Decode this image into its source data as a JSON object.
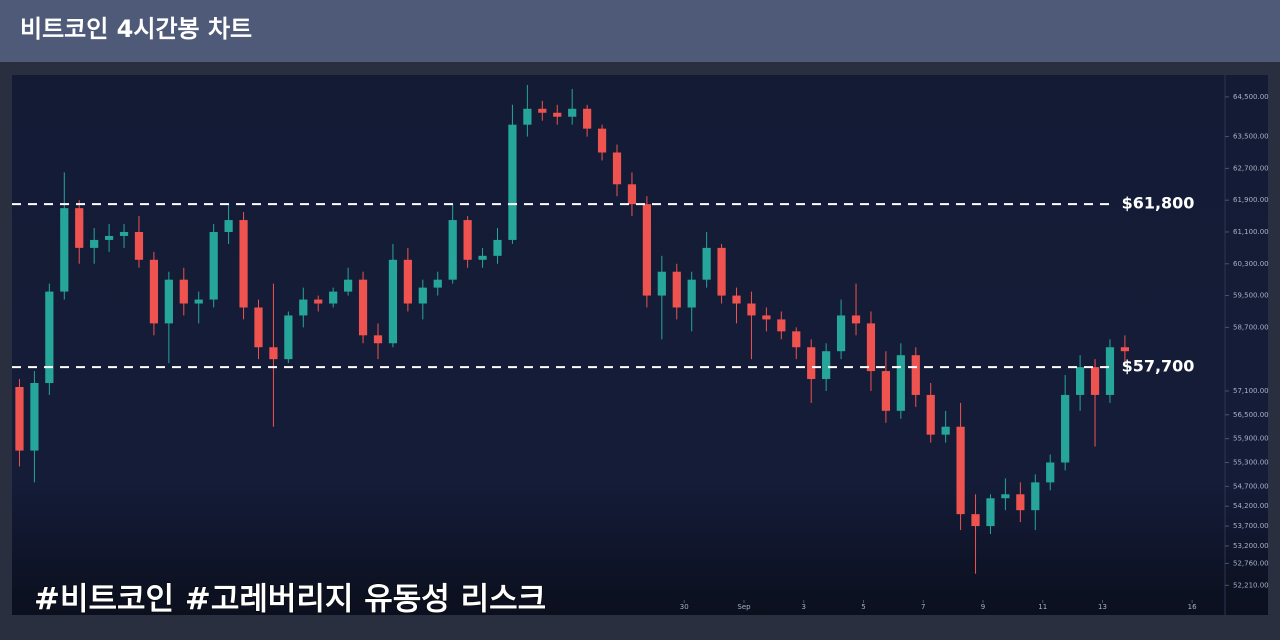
{
  "chart_data": {
    "type": "candlestick",
    "title": "비트코인 4시간봉 차트",
    "caption": "#비트코인 #고레버리지 유동성 리스크",
    "up_color": "#26a69a",
    "down_color": "#ef5350",
    "open": [
      57200,
      55600,
      57300,
      59600,
      61700,
      60700,
      60900,
      61000,
      61100,
      60400,
      58800,
      59900,
      59300,
      59400,
      61100,
      61400,
      59200,
      58200,
      57900,
      59000,
      59400,
      59300,
      59600,
      59900,
      58500,
      58300,
      60400,
      59300,
      59700,
      59900,
      61400,
      60400,
      60500,
      60900,
      63800,
      64200,
      64100,
      64000,
      64200,
      63700,
      63100,
      62300,
      61800,
      59500,
      60100,
      59200,
      59900,
      60700,
      59500,
      59300,
      59000,
      58900,
      58600,
      58200,
      57400,
      58100,
      59000,
      58800,
      57600,
      56600,
      58000,
      57000,
      56000,
      56200,
      54000,
      53700,
      54400,
      54500,
      54100,
      54800,
      55300,
      57000,
      57700,
      57000,
      58200
    ],
    "high": [
      57400,
      57600,
      59800,
      62600,
      61900,
      61200,
      61300,
      61300,
      61500,
      60600,
      60100,
      60200,
      59600,
      61300,
      61800,
      61600,
      59400,
      59800,
      59100,
      59700,
      59500,
      59700,
      60200,
      60100,
      58800,
      60800,
      60700,
      59900,
      60100,
      61800,
      61500,
      60700,
      61200,
      64300,
      64800,
      64400,
      64300,
      64700,
      64300,
      63800,
      63300,
      62600,
      62000,
      60500,
      60300,
      60100,
      61100,
      60800,
      59700,
      59600,
      59200,
      59100,
      58700,
      58400,
      58300,
      59400,
      59800,
      59100,
      58100,
      58300,
      58200,
      57300,
      56600,
      56800,
      54500,
      54500,
      54900,
      54800,
      55000,
      55500,
      57500,
      58000,
      57900,
      58400,
      58500
    ],
    "low": [
      55200,
      54800,
      57000,
      59400,
      60300,
      60300,
      60600,
      60700,
      60200,
      58500,
      57800,
      59000,
      58800,
      59200,
      60800,
      58900,
      57900,
      56200,
      57800,
      58700,
      59100,
      59200,
      59500,
      58300,
      57900,
      58200,
      59100,
      58900,
      59500,
      59800,
      60200,
      60200,
      60300,
      60800,
      63500,
      63900,
      63800,
      63800,
      63500,
      62900,
      62000,
      61500,
      59200,
      58400,
      58900,
      58600,
      59700,
      59300,
      58800,
      57900,
      58600,
      58400,
      57900,
      56800,
      57100,
      57900,
      58500,
      57100,
      56300,
      56400,
      56700,
      55800,
      55800,
      53600,
      52500,
      53500,
      54100,
      53800,
      53600,
      54600,
      55100,
      56600,
      55700,
      56800,
      57800
    ],
    "close": [
      55600,
      57300,
      59600,
      61700,
      60700,
      60900,
      61000,
      61100,
      60400,
      58800,
      59900,
      59300,
      59400,
      61100,
      61400,
      59200,
      58200,
      57900,
      59000,
      59400,
      59300,
      59600,
      59900,
      58500,
      58300,
      60400,
      59300,
      59700,
      59900,
      61400,
      60400,
      60500,
      60900,
      63800,
      64200,
      64100,
      64000,
      64200,
      63700,
      63100,
      62300,
      61800,
      59500,
      60100,
      59200,
      59900,
      60700,
      59500,
      59300,
      59000,
      58900,
      58600,
      58200,
      57400,
      58100,
      59000,
      58800,
      57600,
      56600,
      58000,
      57000,
      56000,
      56200,
      54000,
      53700,
      54400,
      54500,
      54100,
      54800,
      55300,
      57000,
      57700,
      57000,
      58200,
      58100
    ],
    "levels": [
      {
        "value": 61800,
        "label": "$61,800"
      },
      {
        "value": 57700,
        "label": "$57,700"
      }
    ],
    "xlim": [
      0,
      81.2
    ],
    "xticks": [
      {
        "value": 45,
        "label": "30"
      },
      {
        "value": 49,
        "label": "Sep"
      },
      {
        "value": 53,
        "label": "3"
      },
      {
        "value": 57,
        "label": "5"
      },
      {
        "value": 61,
        "label": "7"
      },
      {
        "value": 65,
        "label": "9"
      },
      {
        "value": 69,
        "label": "11"
      },
      {
        "value": 73,
        "label": "13"
      },
      {
        "value": 79,
        "label": "16"
      }
    ],
    "ylim": [
      51840,
      65050
    ],
    "yticks": [
      {
        "value": 64500,
        "label": "64,500.00"
      },
      {
        "value": 63500,
        "label": "63,500.00"
      },
      {
        "value": 62700,
        "label": "62,700.00"
      },
      {
        "value": 61900,
        "label": "61,900.00"
      },
      {
        "value": 61100,
        "label": "61,100.00"
      },
      {
        "value": 60300,
        "label": "60,300.00"
      },
      {
        "value": 59500,
        "label": "59,500.00"
      },
      {
        "value": 58700,
        "label": "58,700.00"
      },
      {
        "value": 57100,
        "label": "57,100.00"
      },
      {
        "value": 56500,
        "label": "56,500.00"
      },
      {
        "value": 55900,
        "label": "55,900.00"
      },
      {
        "value": 55300,
        "label": "55,300.00"
      },
      {
        "value": 54700,
        "label": "54,700.00"
      },
      {
        "value": 54200,
        "label": "54,200.00"
      },
      {
        "value": 53700,
        "label": "53,700.00"
      },
      {
        "value": 53200,
        "label": "53,200.00"
      },
      {
        "value": 52760,
        "label": "52,760.00"
      },
      {
        "value": 52210,
        "label": "52,210.00"
      }
    ]
  }
}
